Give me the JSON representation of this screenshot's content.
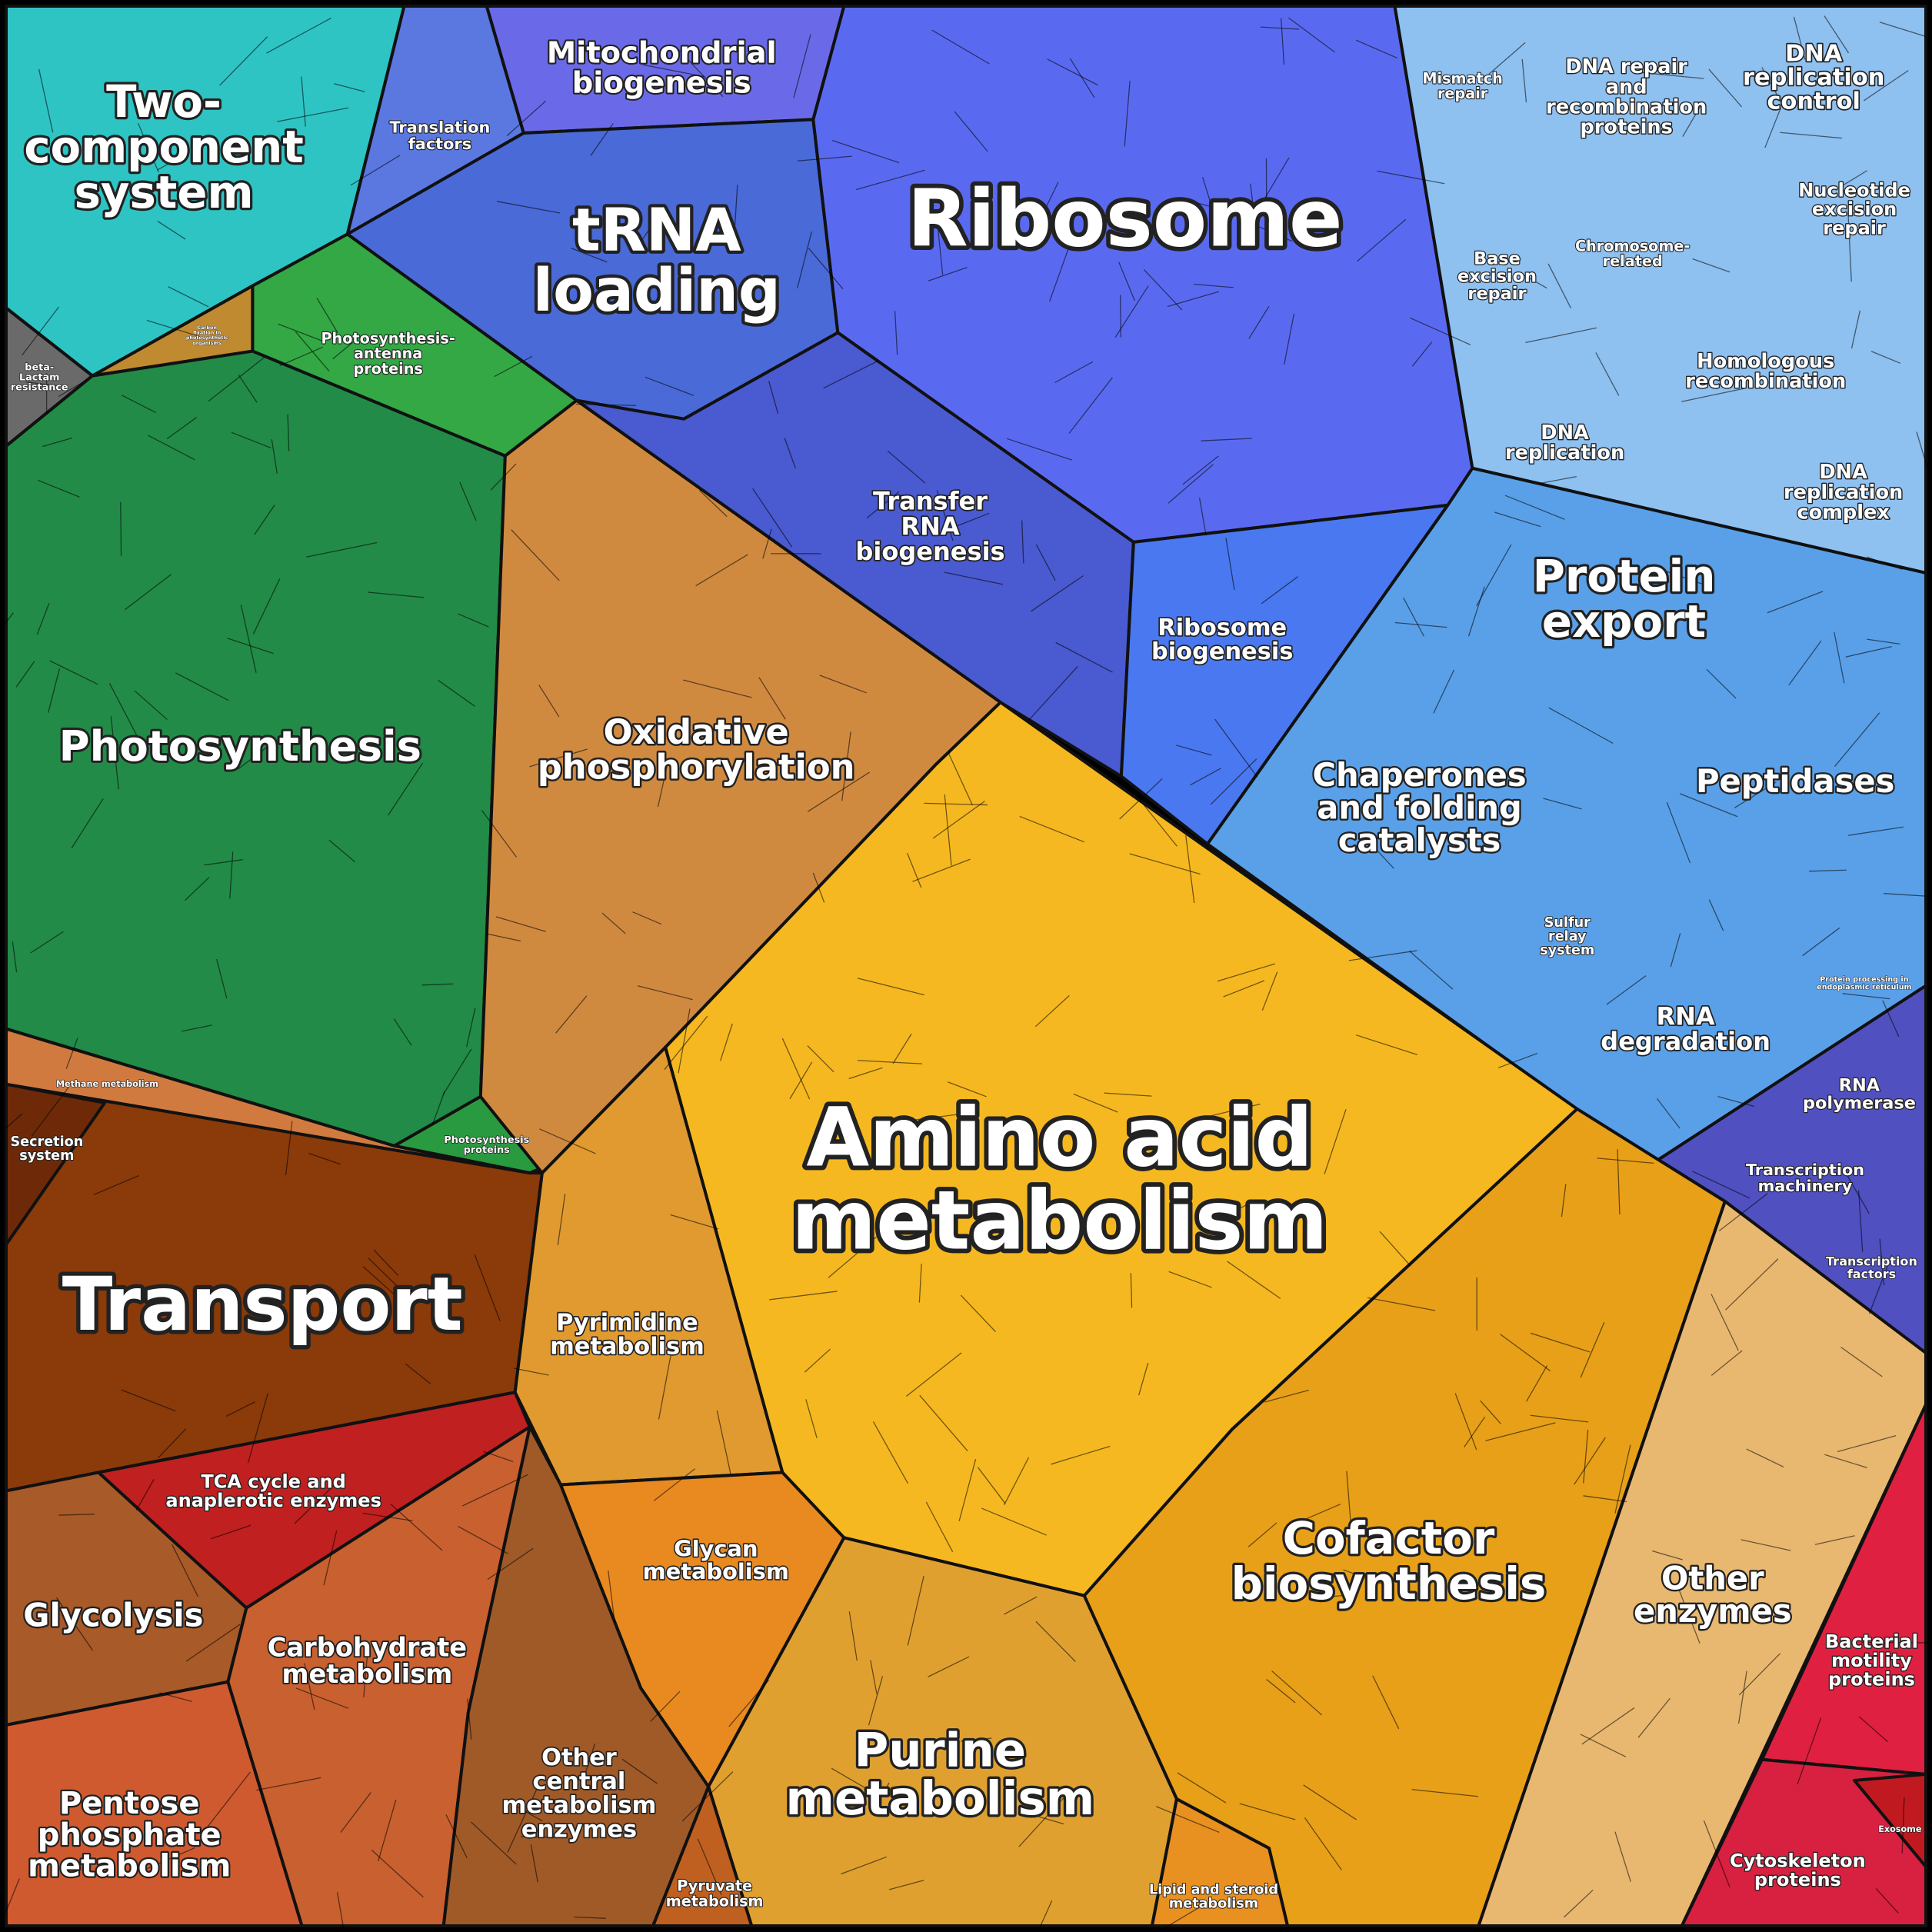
{
  "regions": [
    {
      "label": [
        "Two-",
        "component",
        "system"
      ]
    },
    {
      "label": [
        "beta-",
        "Lactam",
        "resistance"
      ]
    },
    {
      "label": [
        "Carbon",
        "fixation in",
        "photosynthetic",
        "organisms"
      ]
    },
    {
      "label": [
        "Photosynthesis-",
        "antenna",
        "proteins"
      ]
    },
    {
      "label": [
        "Photosynthesis"
      ]
    },
    {
      "label": [
        "Methane metabolism"
      ]
    },
    {
      "label": [
        "Photosynthesis",
        "proteins"
      ]
    },
    {
      "label": [
        "Secretion",
        "system"
      ]
    },
    {
      "label": [
        "Transport"
      ]
    },
    {
      "label": [
        "Oxidative",
        "phosphorylation"
      ]
    },
    {
      "label": [
        "Translation",
        "factors"
      ]
    },
    {
      "label": [
        "Mitochondrial",
        "biogenesis"
      ]
    },
    {
      "label": [
        "tRNA",
        "loading"
      ]
    },
    {
      "label": [
        "Ribosome"
      ]
    },
    {
      "label": [
        "Transfer",
        "RNA",
        "biogenesis"
      ]
    },
    {
      "label": [
        "Ribosome",
        "biogenesis"
      ]
    },
    {
      "label": [
        "Mismatch",
        "repair"
      ]
    },
    {
      "label": [
        "DNA repair",
        "and",
        "recombination",
        "proteins"
      ]
    },
    {
      "label": [
        "DNA",
        "replication",
        "control"
      ]
    },
    {
      "label": [
        "Nucleotide",
        "excision",
        "repair"
      ]
    },
    {
      "label": [
        "Base",
        "excision",
        "repair"
      ]
    },
    {
      "label": [
        "Chromosome-",
        "related"
      ]
    },
    {
      "label": [
        "Homologous",
        "recombination"
      ]
    },
    {
      "label": [
        "DNA",
        "replication"
      ]
    },
    {
      "label": [
        "DNA",
        "replication",
        "complex"
      ]
    },
    {
      "label": [
        "Protein",
        "export"
      ]
    },
    {
      "label": [
        "Chaperones",
        "and folding",
        "catalysts"
      ]
    },
    {
      "label": [
        "Peptidases"
      ]
    },
    {
      "label": [
        "Sulfur",
        "relay",
        "system"
      ]
    },
    {
      "label": [
        "Protein processing in",
        "endoplasmic reticulum"
      ]
    },
    {
      "label": [
        "RNA",
        "degradation"
      ]
    },
    {
      "label": [
        "RNA",
        "polymerase"
      ]
    },
    {
      "label": [
        "Transcription",
        "machinery"
      ]
    },
    {
      "label": [
        "Transcription",
        "factors"
      ]
    },
    {
      "label": [
        "Amino acid",
        "metabolism"
      ]
    },
    {
      "label": [
        "Pyrimidine",
        "metabolism"
      ]
    },
    {
      "label": [
        "Glycan",
        "metabolism"
      ]
    },
    {
      "label": [
        "Purine",
        "metabolism"
      ]
    },
    {
      "label": [
        "Lipid and steroid",
        "metabolism"
      ]
    },
    {
      "label": [
        "Cofactor",
        "biosynthesis"
      ]
    },
    {
      "label": [
        "Other",
        "enzymes"
      ]
    },
    {
      "label": [
        "Bacterial",
        "motility",
        "proteins"
      ]
    },
    {
      "label": [
        "Cytoskeleton",
        "proteins"
      ]
    },
    {
      "label": [
        "Exosome"
      ]
    },
    {
      "label": [
        "TCA cycle and",
        "anaplerotic enzymes"
      ]
    },
    {
      "label": [
        "Glycolysis"
      ]
    },
    {
      "label": [
        "Carbohydrate",
        "metabolism"
      ]
    },
    {
      "label": [
        "Pentose",
        "phosphate",
        "metabolism"
      ]
    },
    {
      "label": [
        "Other",
        "central",
        "metabolism",
        "enzymes"
      ]
    },
    {
      "label": [
        "Pyruvate",
        "metabolism"
      ]
    }
  ]
}
